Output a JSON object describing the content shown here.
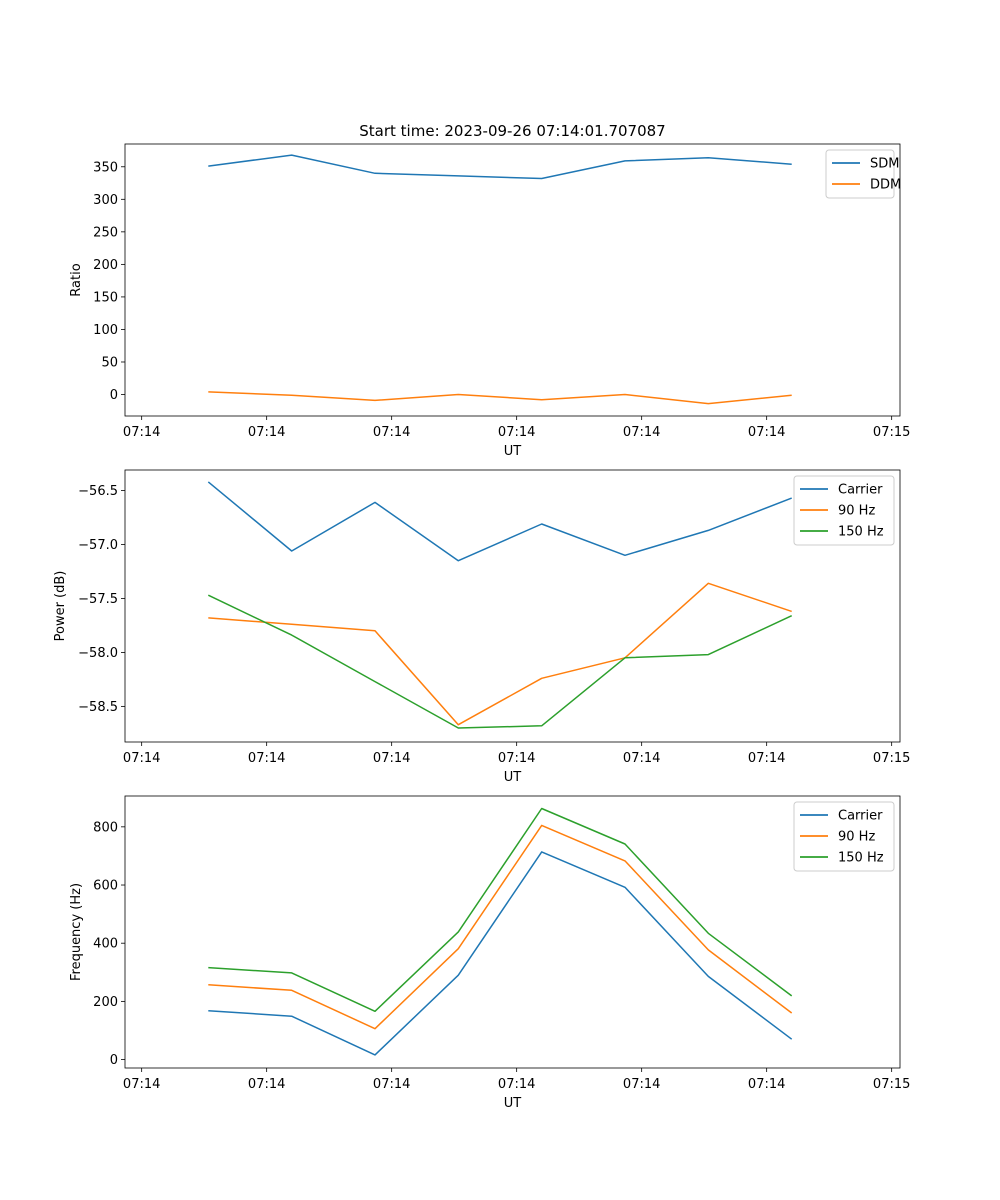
{
  "figure_title": "Start time: 2023-09-26 07:14:01.707087",
  "colors": {
    "c0": "#1f77b4",
    "c1": "#ff7f0e",
    "c2": "#2ca02c"
  },
  "chart_data": [
    {
      "type": "line",
      "title": "Start time: 2023-09-26 07:14:01.707087",
      "xlabel": "UT",
      "ylabel": "Ratio",
      "legend": "top-right",
      "x": [
        1,
        2,
        3,
        4,
        5,
        6,
        7,
        8
      ],
      "xlim": [
        0.0,
        9.3
      ],
      "xticks": [
        0.2,
        1.7,
        3.2,
        4.7,
        6.2,
        7.7,
        9.2
      ],
      "xtick_labels": [
        "07:14",
        "07:14",
        "07:14",
        "07:14",
        "07:14",
        "07:14",
        "07:14"
      ],
      "xtick_extra_label": "07:15",
      "ylim": [
        -33,
        385
      ],
      "yticks": [
        0,
        50,
        100,
        150,
        200,
        250,
        300,
        350
      ],
      "ytick_labels": [
        "0",
        "50",
        "100",
        "150",
        "200",
        "250",
        "300",
        "350"
      ],
      "series": [
        {
          "name": "SDM",
          "color": "#1f77b4",
          "values": [
            351,
            368,
            340,
            336,
            332,
            359,
            364,
            354
          ]
        },
        {
          "name": "DDM",
          "color": "#ff7f0e",
          "values": [
            4,
            -1,
            -9,
            0,
            -8,
            0,
            -14,
            -1
          ]
        }
      ]
    },
    {
      "type": "line",
      "title": "",
      "xlabel": "UT",
      "ylabel": "Power (dB)",
      "legend": "top-right",
      "x": [
        1,
        2,
        3,
        4,
        5,
        6,
        7,
        8
      ],
      "xlim": [
        0.0,
        9.3
      ],
      "xticks": [
        0.2,
        1.7,
        3.2,
        4.7,
        6.2,
        7.7,
        9.2
      ],
      "xtick_labels": [
        "07:14",
        "07:14",
        "07:14",
        "07:14",
        "07:14",
        "07:14",
        "07:14"
      ],
      "xtick_extra_label": "07:15",
      "ylim": [
        -58.83,
        -56.31
      ],
      "yticks": [
        -58.5,
        -58.0,
        -57.5,
        -57.0,
        -56.5
      ],
      "ytick_labels": [
        "−58.5",
        "−58.0",
        "−57.5",
        "−57.0",
        "−56.5"
      ],
      "series": [
        {
          "name": "Carrier",
          "color": "#1f77b4",
          "values": [
            -56.42,
            -57.06,
            -56.61,
            -57.15,
            -56.81,
            -57.1,
            -56.87,
            -56.57
          ]
        },
        {
          "name": "90 Hz",
          "color": "#ff7f0e",
          "values": [
            -57.68,
            -57.74,
            -57.8,
            -58.67,
            -58.24,
            -58.05,
            -57.36,
            -57.62
          ]
        },
        {
          "name": "150 Hz",
          "color": "#2ca02c",
          "values": [
            -57.47,
            -57.84,
            -58.27,
            -58.7,
            -58.68,
            -58.05,
            -58.02,
            -57.66
          ]
        }
      ]
    },
    {
      "type": "line",
      "title": "",
      "xlabel": "UT",
      "ylabel": "Frequency (Hz)",
      "legend": "top-right",
      "x": [
        1,
        2,
        3,
        4,
        5,
        6,
        7,
        8
      ],
      "xlim": [
        0.0,
        9.3
      ],
      "xticks": [
        0.2,
        1.7,
        3.2,
        4.7,
        6.2,
        7.7,
        9.2
      ],
      "xtick_labels": [
        "07:14",
        "07:14",
        "07:14",
        "07:14",
        "07:14",
        "07:14",
        "07:14"
      ],
      "xtick_extra_label": "07:15",
      "ylim": [
        -29,
        906
      ],
      "yticks": [
        0,
        200,
        400,
        600,
        800
      ],
      "ytick_labels": [
        "0",
        "200",
        "400",
        "600",
        "800"
      ],
      "series": [
        {
          "name": "Carrier",
          "color": "#1f77b4",
          "values": [
            168,
            149,
            16,
            290,
            714,
            592,
            286,
            70
          ]
        },
        {
          "name": "90 Hz",
          "color": "#ff7f0e",
          "values": [
            257,
            238,
            106,
            381,
            805,
            683,
            377,
            160
          ]
        },
        {
          "name": "150 Hz",
          "color": "#2ca02c",
          "values": [
            316,
            298,
            166,
            439,
            863,
            741,
            434,
            219
          ]
        }
      ]
    }
  ]
}
